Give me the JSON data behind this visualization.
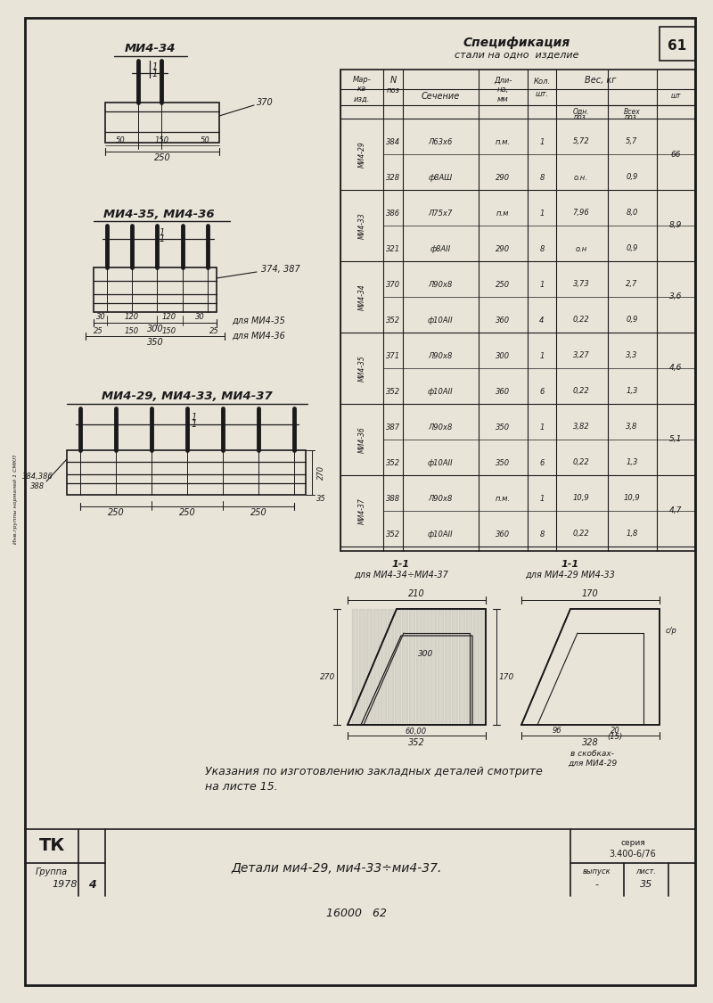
{
  "bg_color": "#e8e4d8",
  "line_color": "#1a1a1a",
  "page_number": "61",
  "title1": "Спецификация",
  "title2": "стали на одно  изделие",
  "footer_text1": "Указания по изготовлению закладных деталей смотрите",
  "footer_text2": "на листе 15.",
  "bottom_label": "Детали ми4-29, ми4-33÷ми4-37.",
  "series": "3.400-6/76",
  "year": "1978",
  "group": "4",
  "sheet_num": "16000   62",
  "list_num": "35",
  "tk_label": "ТК",
  "vypusk": "выпуск",
  "list_label": "лист.",
  "seriya": "серия"
}
